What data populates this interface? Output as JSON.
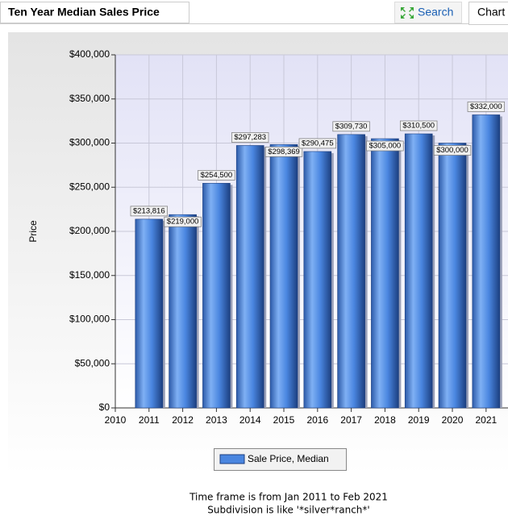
{
  "header": {
    "title": "Ten Year Median Sales Price",
    "search": "Search",
    "tab": "Chart"
  },
  "chart_data": {
    "type": "bar",
    "y_label": "Price",
    "x": [
      2011,
      2012,
      2013,
      2014,
      2015,
      2016,
      2017,
      2018,
      2019,
      2020,
      2021
    ],
    "series": [
      {
        "name": "Sale Price, Median",
        "color": "#4a86e0",
        "values": [
          213816,
          219000,
          254500,
          297283,
          298369,
          290475,
          309730,
          305000,
          310500,
          300000,
          332000
        ],
        "value_labels": [
          "$213,816",
          "$219,000",
          "$254,500",
          "$297,283",
          "$298,369",
          "$290,475",
          "$309,730",
          "$305,000",
          "$310,500",
          "$300,000",
          "$332,000"
        ]
      }
    ],
    "xlim": [
      2010,
      2021.65
    ],
    "xticks": [
      2010,
      2011,
      2012,
      2013,
      2014,
      2015,
      2016,
      2017,
      2018,
      2019,
      2020,
      2021
    ],
    "ylim": [
      0,
      400000
    ],
    "yticks": [
      {
        "value": 0,
        "label": "$0"
      },
      {
        "value": 50000,
        "label": "$50,000"
      },
      {
        "value": 100000,
        "label": "$100,000"
      },
      {
        "value": 150000,
        "label": "$150,000"
      },
      {
        "value": 200000,
        "label": "$200,000"
      },
      {
        "value": 250000,
        "label": "$250,000"
      },
      {
        "value": 300000,
        "label": "$300,000"
      },
      {
        "value": 350000,
        "label": "$350,000"
      },
      {
        "value": 400000,
        "label": "$400,000"
      }
    ],
    "grid": true
  },
  "notes": [
    "Time frame is from Jan 2011 to Feb 2021",
    "Subdivision is like '*silver*ranch*'"
  ]
}
